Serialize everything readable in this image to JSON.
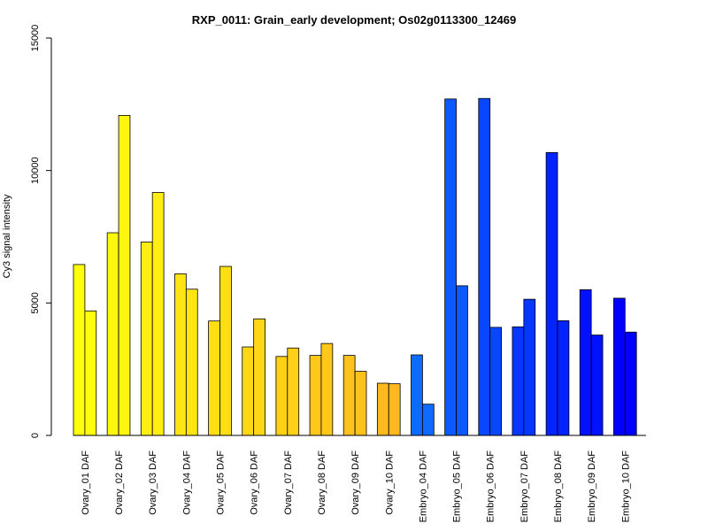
{
  "chart_data": {
    "type": "bar",
    "title": "RXP_0011: Grain_early development; Os02g0113300_12469",
    "xlabel": "",
    "ylabel": "Cy3 signal intensity",
    "ylim": [
      0,
      15000
    ],
    "yticks": [
      0,
      5000,
      10000,
      15000
    ],
    "yticks_labels": [
      "0",
      "5000",
      "10000",
      "15000"
    ],
    "categories": [
      "Ovary_01 DAF",
      "Ovary_02 DAF",
      "Ovary_03 DAF",
      "Ovary_04 DAF",
      "Ovary_05 DAF",
      "Ovary_06 DAF",
      "Ovary_07 DAF",
      "Ovary_08 DAF",
      "Ovary_09 DAF",
      "Ovary_10 DAF",
      "Embryo_04 DAF",
      "Embryo_05 DAF",
      "Embryo_06 DAF",
      "Embryo_07 DAF",
      "Embryo_08 DAF",
      "Embryo_09 DAF",
      "Embryo_10 DAF"
    ],
    "colors": [
      "#FFFF0D",
      "#FFF60F",
      "#FFEE11",
      "#FFE613",
      "#FFDF14",
      "#FFD716",
      "#FFD018",
      "#FFC81A",
      "#FFC11C",
      "#FFB91E",
      "#0F6BFF",
      "#0B59FF",
      "#0947FF",
      "#0636FF",
      "#0424FF",
      "#0212FF",
      "#0000FF"
    ],
    "grid": false,
    "legend": "none",
    "series": [
      {
        "values": [
          6450,
          7650,
          7300,
          6100,
          4320,
          3340,
          2980,
          3020,
          3020,
          1970,
          3040,
          12700,
          12720,
          4100,
          10680,
          5500,
          5180
        ]
      },
      {
        "values": [
          4700,
          12080,
          9170,
          5520,
          6380,
          4400,
          3300,
          3470,
          2420,
          1950,
          1180,
          5650,
          4080,
          5140,
          4330,
          3790,
          3900
        ]
      }
    ]
  }
}
